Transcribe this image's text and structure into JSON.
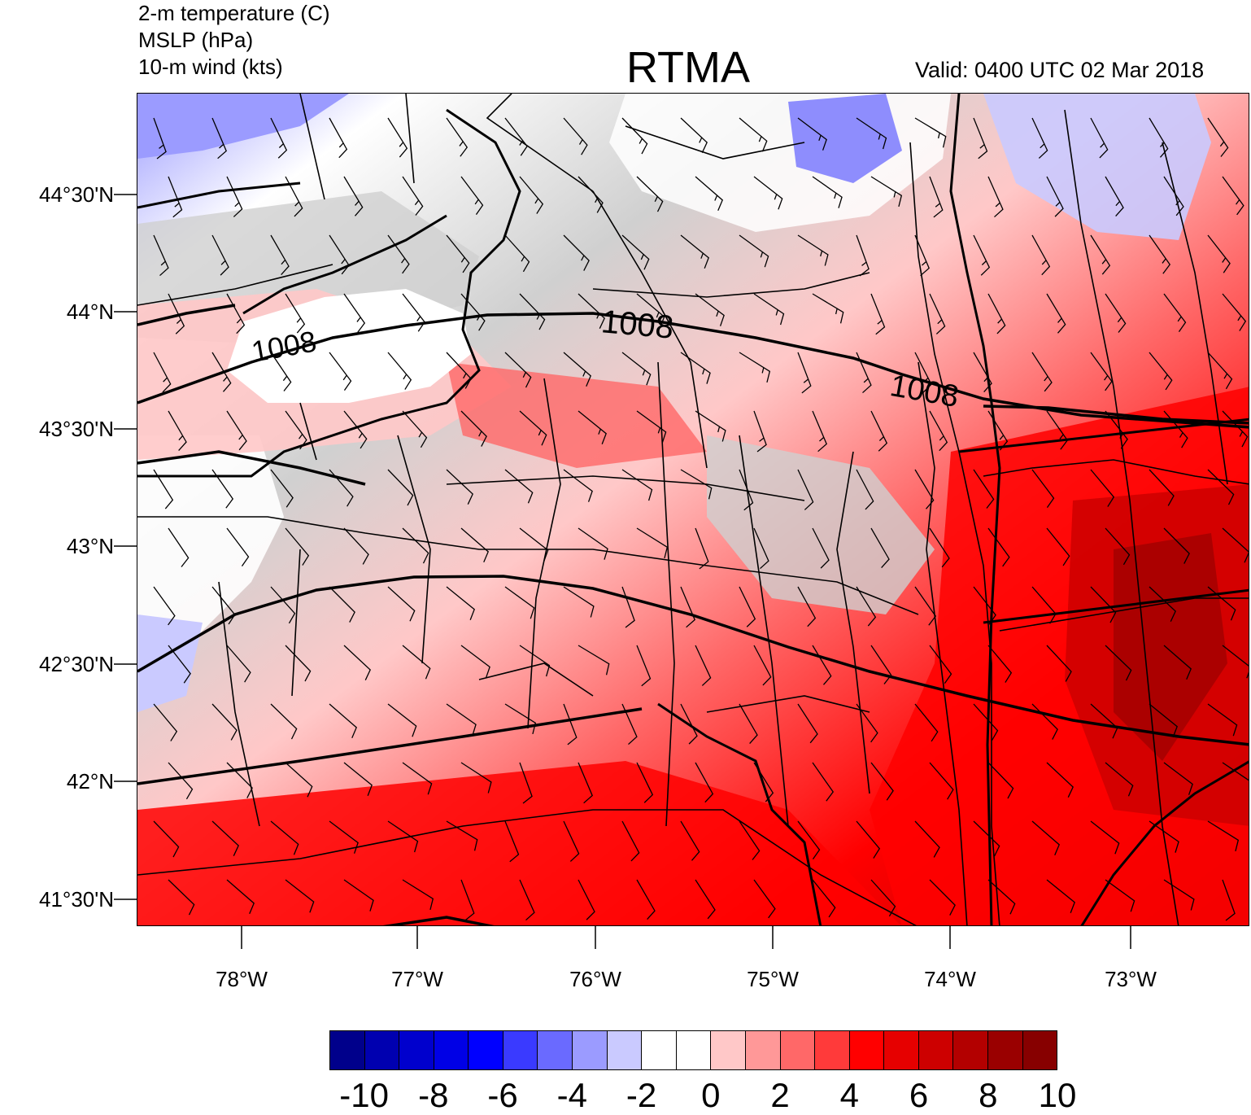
{
  "header": {
    "variables": [
      "2-m temperature (C)",
      "MSLP (hPa)",
      "10-m wind (kts)"
    ],
    "title": "RTMA",
    "valid": "Valid: 0400 UTC 02 Mar 2018"
  },
  "map": {
    "lat_labels": [
      "44°30'N",
      "44°N",
      "43°30'N",
      "43°N",
      "42°30'N",
      "42°N",
      "41°30'N"
    ],
    "lon_labels": [
      "78°W",
      "77°W",
      "76°W",
      "75°W",
      "74°W",
      "73°W"
    ],
    "isobar_label": "1008",
    "isobar_label_count": 3
  },
  "colorbar": {
    "colors": [
      "#00008b",
      "#0000b0",
      "#0000cd",
      "#0000e6",
      "#0000ff",
      "#3a3aff",
      "#6a6aff",
      "#9b9bff",
      "#cacaff",
      "#ffffff",
      "#ffffff",
      "#ffc8c8",
      "#ff9898",
      "#ff6868",
      "#ff3a3a",
      "#ff0000",
      "#e60000",
      "#cd0000",
      "#b30000",
      "#9a0000",
      "#870000"
    ],
    "labels": [
      "-10",
      "-8",
      "-6",
      "-4",
      "-2",
      "0",
      "2",
      "4",
      "6",
      "8",
      "10"
    ]
  }
}
